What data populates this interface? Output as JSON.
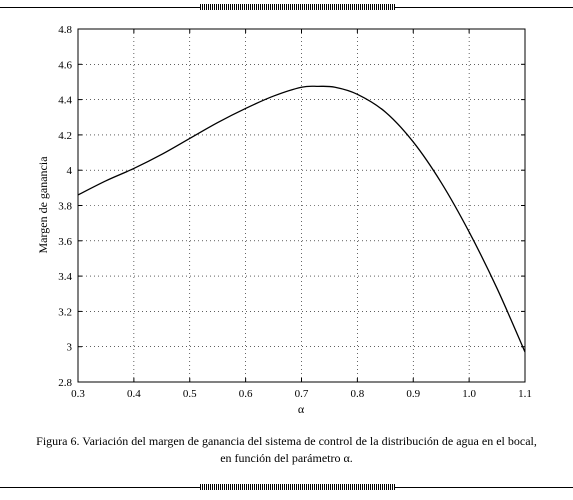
{
  "chart_data": {
    "type": "line",
    "xlabel": "α",
    "ylabel": "Margen de ganancia",
    "xlim": [
      0.3,
      1.1
    ],
    "ylim": [
      2.8,
      4.8
    ],
    "grid": true,
    "xticks": [
      0.3,
      0.4,
      0.5,
      0.6,
      0.7,
      0.8,
      0.9,
      1.0,
      1.1
    ],
    "xtick_labels": [
      "0.3",
      "0.4",
      "0.5",
      "0.6",
      "0.7",
      "0.8",
      "0.9",
      "1.0",
      "1.1"
    ],
    "yticks": [
      2.8,
      3.0,
      3.2,
      3.4,
      3.6,
      3.8,
      4.0,
      4.2,
      4.4,
      4.6,
      4.8
    ],
    "ytick_labels": [
      "2.8",
      "3",
      "3.2",
      "3.4",
      "3.6",
      "3.8",
      "4",
      "4.2",
      "4.4",
      "4.6",
      "4.8"
    ],
    "series": [
      {
        "x": [
          0.3,
          0.35,
          0.4,
          0.45,
          0.5,
          0.55,
          0.6,
          0.65,
          0.7,
          0.73,
          0.76,
          0.8,
          0.85,
          0.9,
          0.95,
          1.0,
          1.05,
          1.1
        ],
        "y": [
          3.86,
          3.94,
          4.01,
          4.09,
          4.18,
          4.27,
          4.35,
          4.42,
          4.47,
          4.475,
          4.47,
          4.43,
          4.33,
          4.16,
          3.93,
          3.65,
          3.33,
          2.97
        ]
      }
    ]
  },
  "caption": {
    "line1": "Figura 6. Variación del margen de ganancia del sistema de control de la distribución de agua en el bocal,",
    "line2": "en función del parámetro α."
  }
}
